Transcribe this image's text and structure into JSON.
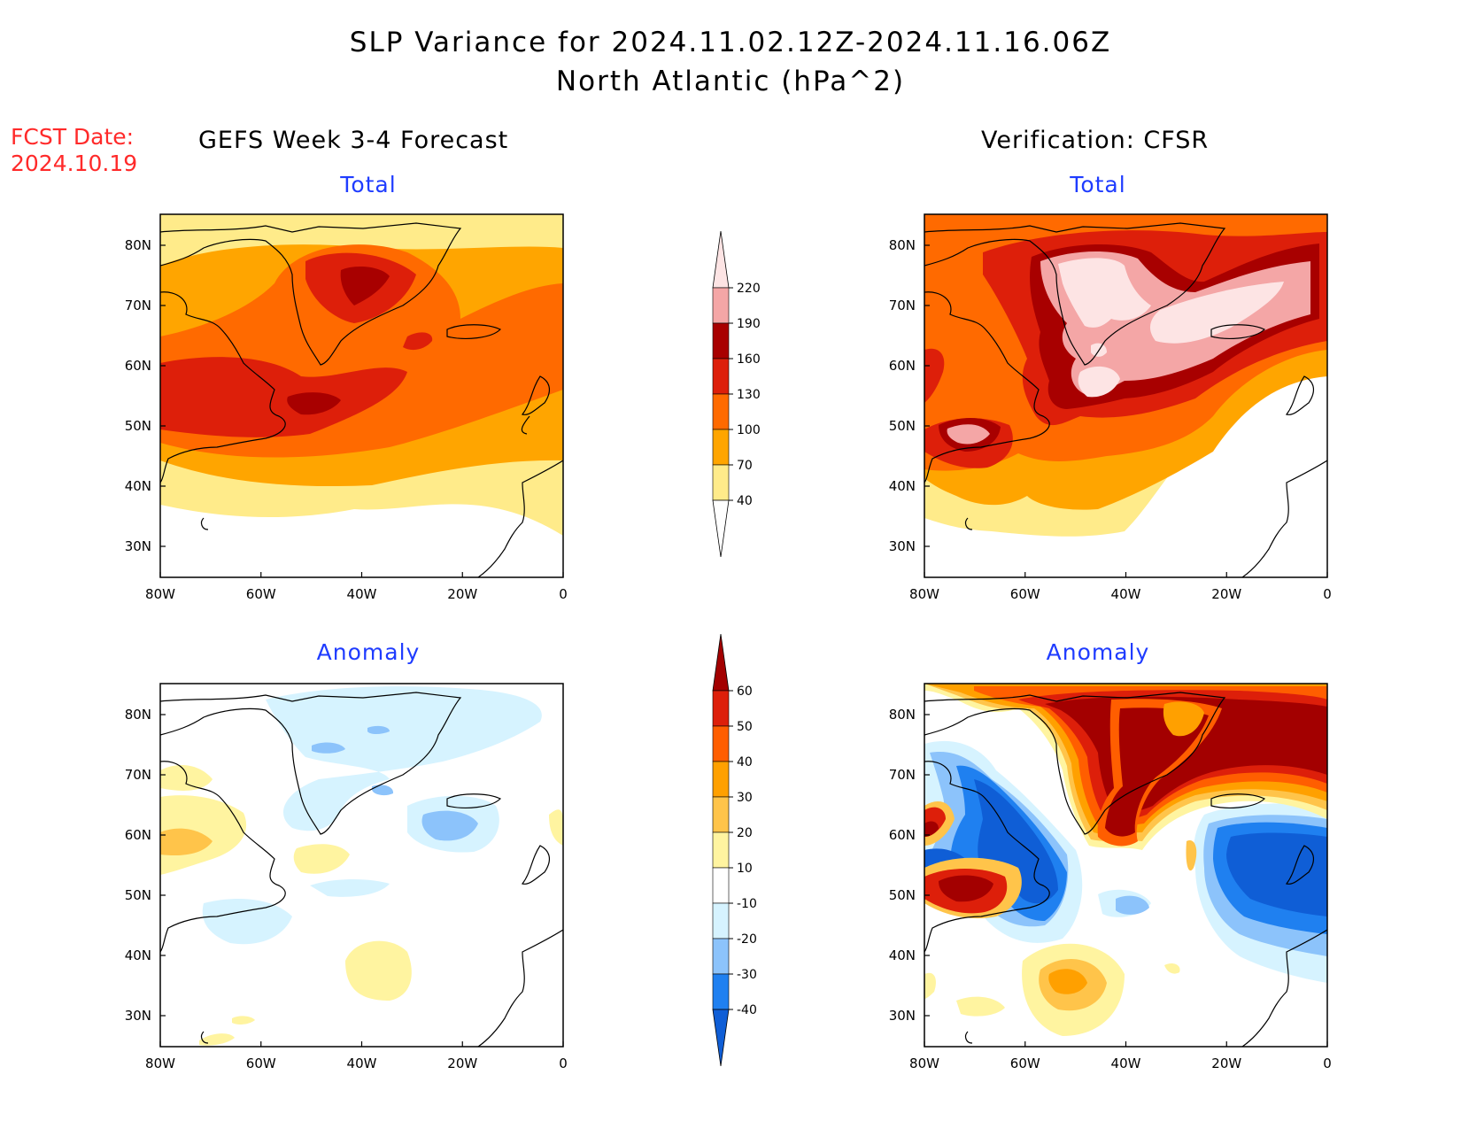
{
  "header": {
    "title": "SLP Variance for 2024.11.02.12Z-2024.11.16.06Z",
    "subtitle": "North Atlantic (hPa^2)",
    "fcst_label": "FCST Date:",
    "fcst_date": "2024.10.19"
  },
  "columns": {
    "left": "GEFS Week 3-4 Forecast",
    "right": "Verification: CFSR"
  },
  "panels": {
    "top_left": "Total",
    "top_right": "Total",
    "bottom_left": "Anomaly",
    "bottom_right": "Anomaly"
  },
  "axes": {
    "lon_ticks": [
      "80W",
      "60W",
      "40W",
      "20W",
      "0"
    ],
    "lat_ticks": [
      "80N",
      "70N",
      "60N",
      "50N",
      "40N",
      "30N"
    ]
  },
  "colorbars": {
    "total": {
      "labels": [
        "40",
        "70",
        "100",
        "130",
        "160",
        "190",
        "220"
      ],
      "colors": [
        "#ffffff",
        "#ffeb8a",
        "#ffa500",
        "#ff6a00",
        "#dd1f0a",
        "#a80000",
        "#f4a6a6",
        "#fde4e4"
      ]
    },
    "anomaly": {
      "labels": [
        "-40",
        "-30",
        "-20",
        "-10",
        "10",
        "20",
        "30",
        "40",
        "50",
        "60"
      ],
      "colors": [
        "#0f5ed6",
        "#1f80f0",
        "#8cc3fb",
        "#d6f3ff",
        "#ffffff",
        "#fff4a0",
        "#ffc44a",
        "#ffa000",
        "#ff5e00",
        "#dd1f0a",
        "#a30000"
      ]
    }
  },
  "colors": {
    "title": "#000000",
    "fcst_date": "#ff2a2a",
    "panel_label": "#1f3cff"
  }
}
